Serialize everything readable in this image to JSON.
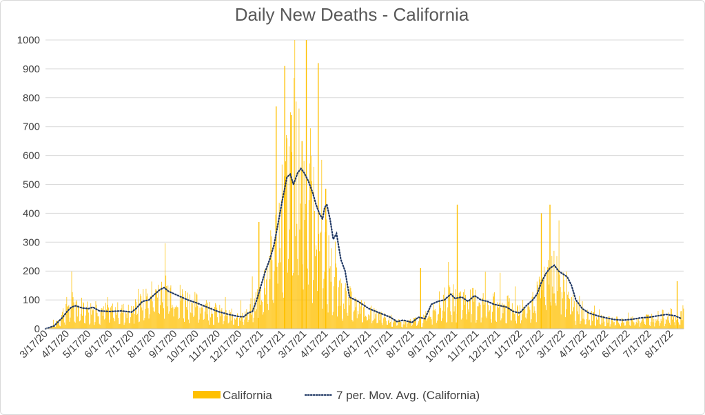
{
  "chart_data": {
    "type": "bar",
    "title": "Daily New Deaths - California",
    "xlabel": "",
    "ylabel": "",
    "ylim": [
      0,
      1000
    ],
    "y_ticks": [
      0,
      100,
      200,
      300,
      400,
      500,
      600,
      700,
      800,
      900,
      1000
    ],
    "x_tick_labels": [
      "3/17/20",
      "4/17/20",
      "5/17/20",
      "6/17/20",
      "7/17/20",
      "8/17/20",
      "9/17/20",
      "10/17/20",
      "11/17/20",
      "12/17/20",
      "1/17/21",
      "2/17/21",
      "3/17/21",
      "4/17/21",
      "5/17/21",
      "6/17/21",
      "7/17/21",
      "8/17/21",
      "9/17/21",
      "10/17/21",
      "11/17/21",
      "12/17/21",
      "1/17/22",
      "2/17/22",
      "3/17/22",
      "4/17/22",
      "5/17/22",
      "6/17/22",
      "7/17/22",
      "8/17/22"
    ],
    "x_range_months": [
      0,
      29.6
    ],
    "grid": true,
    "legend_position": "bottom",
    "colors": {
      "bars": "#FFC000",
      "moving_avg": "#203864",
      "grid": "#d9d9d9"
    },
    "series": [
      {
        "name": "California",
        "type": "bar",
        "note": "daily deaths, bars per day; values estimated from the figure, sampled at month offsets from 3/17/20",
        "points": [
          [
            0,
            0
          ],
          [
            0.3,
            10
          ],
          [
            0.6,
            30
          ],
          [
            0.8,
            55
          ],
          [
            1,
            80
          ],
          [
            1.2,
            95
          ],
          [
            1.5,
            75
          ],
          [
            1.7,
            80
          ],
          [
            2,
            70
          ],
          [
            2.5,
            70
          ],
          [
            3,
            65
          ],
          [
            3.5,
            65
          ],
          [
            4,
            60
          ],
          [
            4.3,
            80
          ],
          [
            4.7,
            110
          ],
          [
            5,
            125
          ],
          [
            5.3,
            150
          ],
          [
            5.6,
            140
          ],
          [
            6,
            120
          ],
          [
            6.5,
            105
          ],
          [
            7,
            90
          ],
          [
            7.5,
            75
          ],
          [
            8,
            60
          ],
          [
            8.5,
            50
          ],
          [
            9,
            45
          ],
          [
            9.3,
            55
          ],
          [
            9.6,
            80
          ],
          [
            10,
            130
          ],
          [
            10.3,
            200
          ],
          [
            10.6,
            280
          ],
          [
            10.9,
            400
          ],
          [
            11.2,
            520
          ],
          [
            11.5,
            560
          ],
          [
            11.8,
            540
          ],
          [
            12.1,
            480
          ],
          [
            12.4,
            420
          ],
          [
            12.7,
            350
          ],
          [
            13,
            280
          ],
          [
            13.3,
            200
          ],
          [
            13.6,
            150
          ],
          [
            14,
            110
          ],
          [
            14.5,
            80
          ],
          [
            15,
            60
          ],
          [
            15.5,
            45
          ],
          [
            16,
            35
          ],
          [
            16.5,
            20
          ],
          [
            17,
            30
          ],
          [
            17.5,
            30
          ],
          [
            18,
            80
          ],
          [
            18.5,
            100
          ],
          [
            19,
            110
          ],
          [
            19.5,
            105
          ],
          [
            20,
            100
          ],
          [
            20.5,
            95
          ],
          [
            21,
            85
          ],
          [
            21.5,
            80
          ],
          [
            22,
            75
          ],
          [
            22.5,
            80
          ],
          [
            23,
            140
          ],
          [
            23.3,
            190
          ],
          [
            23.6,
            210
          ],
          [
            24,
            180
          ],
          [
            24.3,
            120
          ],
          [
            24.6,
            70
          ],
          [
            25,
            50
          ],
          [
            25.5,
            40
          ],
          [
            26,
            35
          ],
          [
            26.5,
            30
          ],
          [
            27,
            30
          ],
          [
            27.5,
            35
          ],
          [
            28,
            40
          ],
          [
            28.5,
            45
          ],
          [
            29,
            50
          ],
          [
            29.4,
            40
          ],
          [
            29.6,
            60
          ]
        ],
        "spikes": [
          [
            9.9,
            370
          ],
          [
            10.7,
            770
          ],
          [
            11.1,
            910
          ],
          [
            11.4,
            740
          ],
          [
            11.9,
            650
          ],
          [
            12.1,
            1000
          ],
          [
            12.65,
            920
          ],
          [
            13.0,
            485
          ],
          [
            17.4,
            210
          ],
          [
            19.1,
            430
          ],
          [
            23.0,
            400
          ],
          [
            23.4,
            430
          ],
          [
            29.3,
            165
          ]
        ]
      },
      {
        "name": "7 per. Mov. Avg. (California)",
        "type": "line",
        "style": "dotted",
        "points": [
          [
            0,
            0
          ],
          [
            0.4,
            10
          ],
          [
            0.8,
            40
          ],
          [
            1,
            60
          ],
          [
            1.2,
            75
          ],
          [
            1.4,
            80
          ],
          [
            1.7,
            72
          ],
          [
            2,
            70
          ],
          [
            2.2,
            75
          ],
          [
            2.5,
            62
          ],
          [
            3,
            60
          ],
          [
            3.5,
            62
          ],
          [
            4,
            58
          ],
          [
            4.2,
            70
          ],
          [
            4.5,
            95
          ],
          [
            4.8,
            100
          ],
          [
            5,
            115
          ],
          [
            5.3,
            135
          ],
          [
            5.5,
            143
          ],
          [
            5.7,
            130
          ],
          [
            6,
            120
          ],
          [
            6.3,
            110
          ],
          [
            6.6,
            100
          ],
          [
            7,
            90
          ],
          [
            7.5,
            75
          ],
          [
            8,
            60
          ],
          [
            8.5,
            50
          ],
          [
            9,
            42
          ],
          [
            9.2,
            42
          ],
          [
            9.4,
            55
          ],
          [
            9.6,
            60
          ],
          [
            9.8,
            100
          ],
          [
            10,
            150
          ],
          [
            10.2,
            200
          ],
          [
            10.4,
            240
          ],
          [
            10.6,
            290
          ],
          [
            10.8,
            370
          ],
          [
            11,
            450
          ],
          [
            11.2,
            525
          ],
          [
            11.35,
            535
          ],
          [
            11.5,
            500
          ],
          [
            11.7,
            540
          ],
          [
            11.85,
            555
          ],
          [
            12,
            540
          ],
          [
            12.2,
            510
          ],
          [
            12.4,
            470
          ],
          [
            12.55,
            430
          ],
          [
            12.7,
            400
          ],
          [
            12.85,
            380
          ],
          [
            12.95,
            420
          ],
          [
            13.05,
            430
          ],
          [
            13.2,
            380
          ],
          [
            13.35,
            310
          ],
          [
            13.5,
            330
          ],
          [
            13.7,
            240
          ],
          [
            13.9,
            200
          ],
          [
            14.1,
            110
          ],
          [
            14.5,
            95
          ],
          [
            15,
            70
          ],
          [
            15.5,
            55
          ],
          [
            16,
            40
          ],
          [
            16.3,
            25
          ],
          [
            16.6,
            30
          ],
          [
            17,
            22
          ],
          [
            17.3,
            40
          ],
          [
            17.6,
            35
          ],
          [
            17.9,
            85
          ],
          [
            18.2,
            95
          ],
          [
            18.5,
            100
          ],
          [
            18.8,
            120
          ],
          [
            19,
            105
          ],
          [
            19.3,
            110
          ],
          [
            19.6,
            95
          ],
          [
            19.9,
            115
          ],
          [
            20.2,
            100
          ],
          [
            20.5,
            95
          ],
          [
            20.8,
            85
          ],
          [
            21.1,
            80
          ],
          [
            21.4,
            75
          ],
          [
            21.7,
            60
          ],
          [
            22,
            55
          ],
          [
            22.3,
            80
          ],
          [
            22.6,
            100
          ],
          [
            22.8,
            120
          ],
          [
            23,
            160
          ],
          [
            23.2,
            190
          ],
          [
            23.4,
            210
          ],
          [
            23.6,
            220
          ],
          [
            23.8,
            200
          ],
          [
            24,
            190
          ],
          [
            24.2,
            180
          ],
          [
            24.4,
            150
          ],
          [
            24.6,
            100
          ],
          [
            24.9,
            70
          ],
          [
            25.2,
            55
          ],
          [
            25.6,
            45
          ],
          [
            26,
            38
          ],
          [
            26.4,
            32
          ],
          [
            26.8,
            30
          ],
          [
            27.2,
            33
          ],
          [
            27.6,
            38
          ],
          [
            28,
            40
          ],
          [
            28.4,
            45
          ],
          [
            28.8,
            50
          ],
          [
            29.2,
            45
          ],
          [
            29.5,
            35
          ]
        ]
      }
    ]
  },
  "legend": {
    "items": [
      {
        "label": "California",
        "color": "#FFC000",
        "marker": "bar"
      },
      {
        "label": "7 per. Mov. Avg. (California)",
        "color": "#203864",
        "marker": "dotted-line"
      }
    ]
  }
}
